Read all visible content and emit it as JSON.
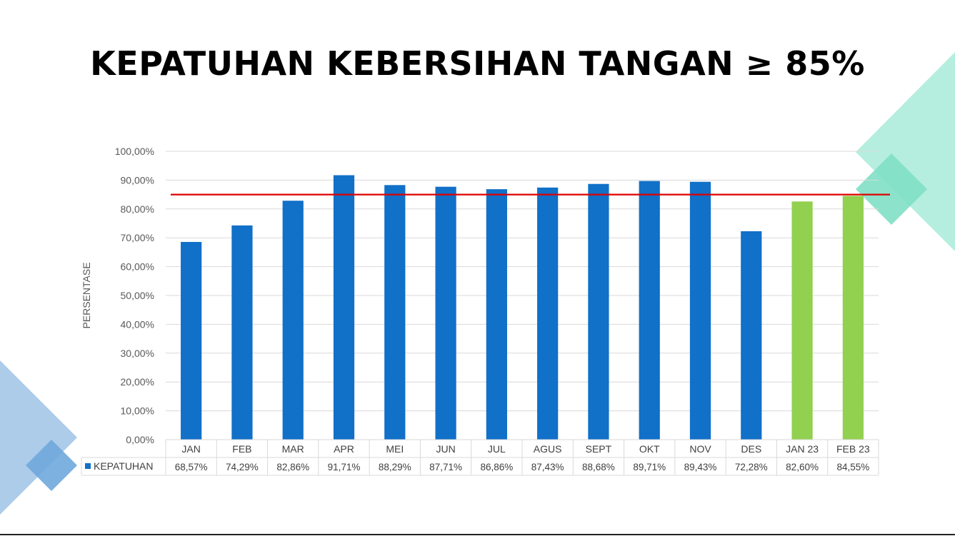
{
  "title": "KEPATUHAN KEBERSIHAN TANGAN ≥ 85%",
  "colors": {
    "bar_2022": "#1170C8",
    "bar_2023": "#92D050",
    "target_line": "#E00000",
    "grid": "#D9D9D9",
    "deco_green": "#A8EBD8",
    "deco_blue": "#9DC3E6"
  },
  "chart_data": {
    "type": "bar",
    "title": "KEPATUHAN KEBERSIHAN TANGAN ≥ 85%",
    "xlabel": "",
    "ylabel": "PERSENTASE",
    "ylim": [
      0,
      100
    ],
    "yticks": [
      "0,00%",
      "10,00%",
      "20,00%",
      "30,00%",
      "40,00%",
      "50,00%",
      "60,00%",
      "70,00%",
      "80,00%",
      "90,00%",
      "100,00%"
    ],
    "categories": [
      "JAN",
      "FEB",
      "MAR",
      "APR",
      "MEI",
      "JUN",
      "JUL",
      "AGUS",
      "SEPT",
      "OKT",
      "NOV",
      "DES",
      "JAN 23",
      "FEB 23"
    ],
    "series": [
      {
        "name": "KEPATUHAN",
        "values": [
          68.57,
          74.29,
          82.86,
          91.71,
          88.29,
          87.71,
          86.86,
          87.43,
          88.68,
          89.71,
          89.43,
          72.28,
          82.6,
          84.55
        ],
        "labels": [
          "68,57%",
          "74,29%",
          "82,86%",
          "91,71%",
          "88,29%",
          "87,71%",
          "86,86%",
          "87,43%",
          "88,68%",
          "89,71%",
          "89,43%",
          "72,28%",
          "82,60%",
          "84,55%"
        ],
        "highlight_from_index": 12
      }
    ],
    "target": 85,
    "grid": true,
    "legend": "data-table"
  }
}
